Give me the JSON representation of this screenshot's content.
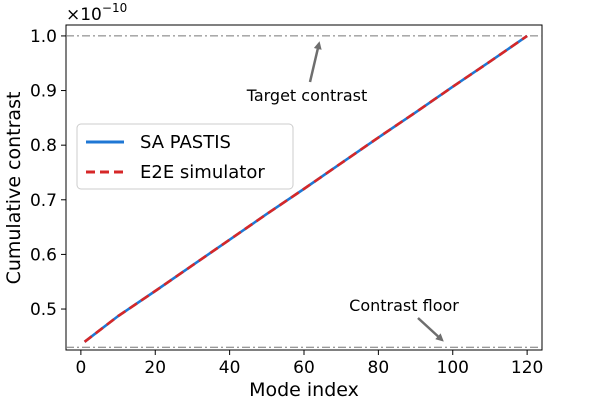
{
  "chart_data": {
    "type": "line",
    "xlabel": "Mode index",
    "ylabel": "Cumulative contrast",
    "y_scale_label": "×10",
    "y_scale_exponent": "−10",
    "xlim": [
      -4,
      124
    ],
    "ylim": [
      0.425,
      1.02
    ],
    "x_ticks": [
      0,
      20,
      40,
      60,
      80,
      100,
      120
    ],
    "y_ticks": [
      0.5,
      0.6,
      0.7,
      0.8,
      0.9,
      1.0
    ],
    "x_tick_labels": [
      "0",
      "20",
      "40",
      "60",
      "80",
      "100",
      "120"
    ],
    "y_tick_labels": [
      "0.5",
      "0.6",
      "0.7",
      "0.8",
      "0.9",
      "1.0"
    ],
    "grid": false,
    "legend_position": "center-left",
    "series": [
      {
        "name": "SA PASTIS",
        "color": "#1f77d4",
        "style": "solid",
        "x": [
          1,
          10,
          20,
          30,
          40,
          50,
          60,
          70,
          80,
          90,
          100,
          110,
          120
        ],
        "y": [
          0.44,
          0.487,
          0.533,
          0.58,
          0.627,
          0.674,
          0.72,
          0.767,
          0.814,
          0.86,
          0.907,
          0.953,
          1.0
        ]
      },
      {
        "name": "E2E simulator",
        "color": "#d62728",
        "style": "dashed",
        "x": [
          1,
          10,
          20,
          30,
          40,
          50,
          60,
          70,
          80,
          90,
          100,
          110,
          120
        ],
        "y": [
          0.44,
          0.487,
          0.533,
          0.58,
          0.627,
          0.674,
          0.72,
          0.767,
          0.814,
          0.86,
          0.907,
          0.953,
          1.0
        ]
      }
    ],
    "reference_lines": [
      {
        "y": 1.0,
        "color": "#777777",
        "style": "dashdot"
      },
      {
        "y": 0.43,
        "color": "#777777",
        "style": "dashdot"
      }
    ],
    "annotations": [
      {
        "text": "Target contrast",
        "target_x": 64,
        "target_y": 0.985
      },
      {
        "text": "Contrast floor",
        "target_x": 97,
        "target_y": 0.444
      }
    ]
  }
}
